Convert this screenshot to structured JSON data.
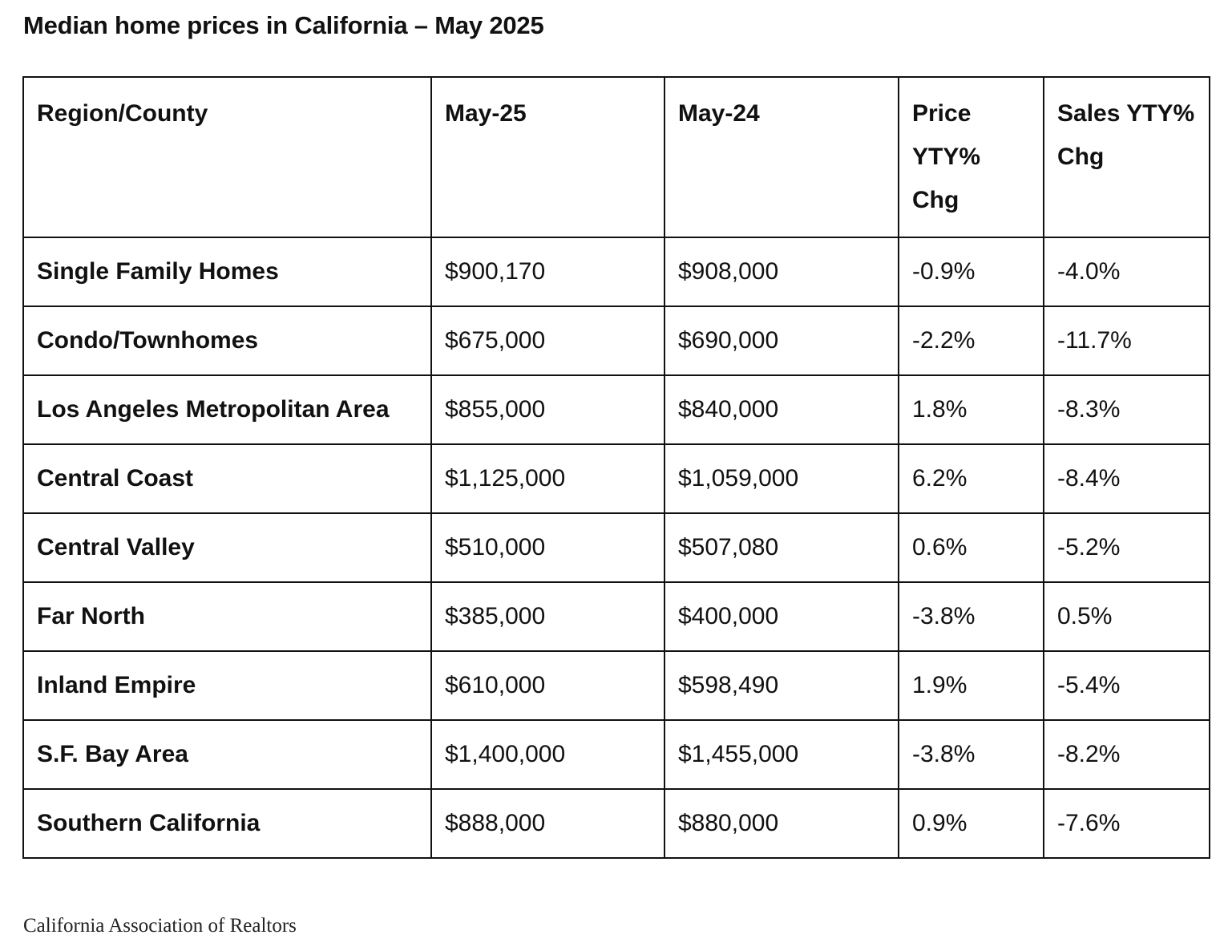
{
  "title": "Median home prices in California – May 2025",
  "table": {
    "headers": [
      "Region/County",
      "May-25",
      "May-24",
      "Price YTY% Chg",
      "Sales YTY% Chg"
    ],
    "rows": [
      {
        "region": "Single Family Homes",
        "may25": "$900,170",
        "may24": "$908,000",
        "price_chg": "-0.9%",
        "sales_chg": "-4.0%"
      },
      {
        "region": "Condo/Townhomes",
        "may25": "$675,000",
        "may24": "$690,000",
        "price_chg": "-2.2%",
        "sales_chg": "-11.7%"
      },
      {
        "region": "Los Angeles Metropolitan Area",
        "may25": "$855,000",
        "may24": "$840,000",
        "price_chg": "1.8%",
        "sales_chg": "-8.3%"
      },
      {
        "region": "Central Coast",
        "may25": "$1,125,000",
        "may24": "$1,059,000",
        "price_chg": "6.2%",
        "sales_chg": "-8.4%"
      },
      {
        "region": "Central Valley",
        "may25": "$510,000",
        "may24": "$507,080",
        "price_chg": "0.6%",
        "sales_chg": "-5.2%"
      },
      {
        "region": "Far North",
        "may25": "$385,000",
        "may24": "$400,000",
        "price_chg": "-3.8%",
        "sales_chg": "0.5%"
      },
      {
        "region": "Inland Empire",
        "may25": "$610,000",
        "may24": "$598,490",
        "price_chg": "1.9%",
        "sales_chg": "-5.4%"
      },
      {
        "region": "S.F. Bay Area",
        "may25": "$1,400,000",
        "may24": "$1,455,000",
        "price_chg": "-3.8%",
        "sales_chg": "-8.2%"
      },
      {
        "region": "Southern California",
        "may25": "$888,000",
        "may24": "$880,000",
        "price_chg": "0.9%",
        "sales_chg": "-7.6%"
      }
    ]
  },
  "source": "California Association of Realtors"
}
